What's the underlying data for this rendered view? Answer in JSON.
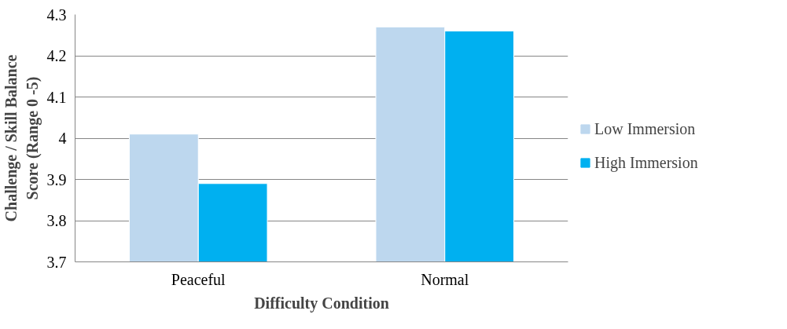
{
  "chart_data": {
    "type": "bar",
    "xlabel": "Difficulty Condition",
    "ylabel": "Challenge / Skill Balance Score (Range 0 -5)",
    "categories": [
      "Peaceful",
      "Normal"
    ],
    "series": [
      {
        "name": "Low Immersion",
        "color": "#bdd7ee",
        "values": [
          4.01,
          4.27
        ]
      },
      {
        "name": "High Immersion",
        "color": "#00b0f0",
        "values": [
          3.89,
          4.26
        ]
      }
    ],
    "ylim": [
      3.7,
      4.3
    ],
    "yticks": [
      3.7,
      3.8,
      3.9,
      4,
      4.1,
      4.2,
      4.3
    ],
    "grid": "y",
    "legend": "right"
  }
}
